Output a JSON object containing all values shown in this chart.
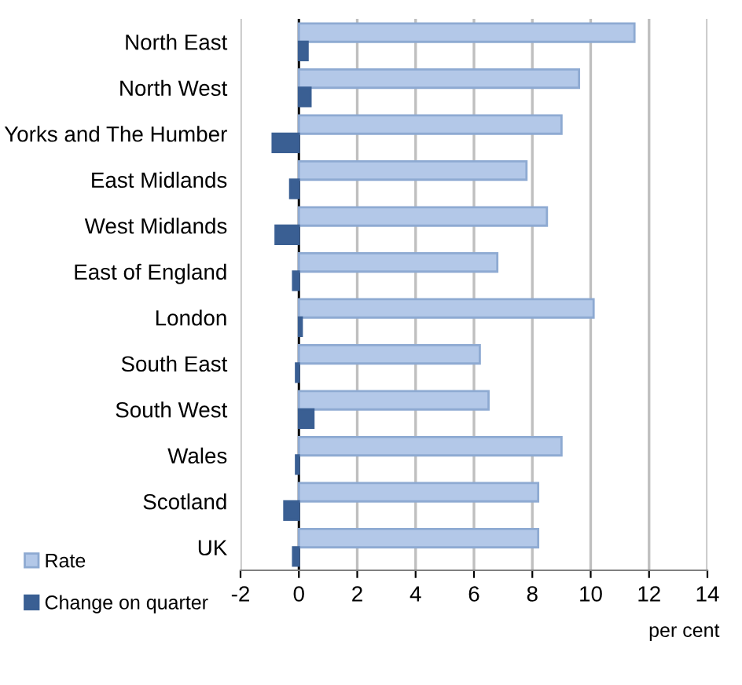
{
  "chart_data": {
    "type": "bar",
    "orientation": "horizontal",
    "xlabel": "per cent",
    "categories": [
      "North East",
      "North West",
      "Yorks and The Humber",
      "East Midlands",
      "West Midlands",
      "East of England",
      "London",
      "South East",
      "South West",
      "Wales",
      "Scotland",
      "UK"
    ],
    "series": [
      {
        "name": "Rate",
        "color": "#b3c8e8",
        "values": [
          11.5,
          9.6,
          9.0,
          7.8,
          8.5,
          6.8,
          10.1,
          6.2,
          6.5,
          9.0,
          8.2,
          8.2
        ]
      },
      {
        "name": "Change on quarter",
        "color": "#3a5f93",
        "values": [
          0.3,
          0.4,
          -0.9,
          -0.3,
          -0.8,
          -0.2,
          0.1,
          -0.1,
          0.5,
          -0.1,
          -0.5,
          -0.2
        ]
      }
    ],
    "xlim": [
      -2,
      14
    ],
    "xticks": [
      -2,
      0,
      2,
      4,
      6,
      8,
      10,
      12,
      14
    ],
    "grid": "x",
    "legend": "bottom left"
  }
}
